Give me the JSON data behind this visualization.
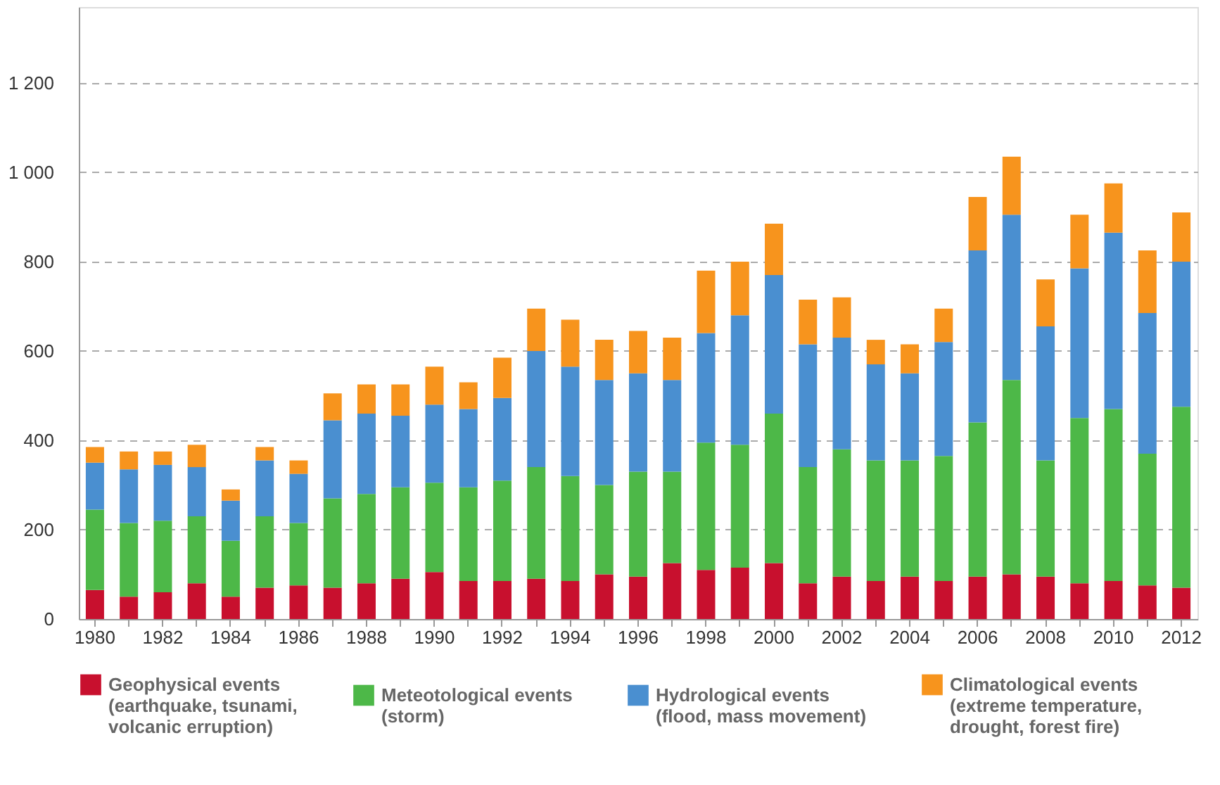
{
  "chart_data": {
    "type": "bar",
    "stacked": true,
    "categories": [
      "1980",
      null,
      "1982",
      null,
      "1984",
      null,
      "1986",
      null,
      "1988",
      null,
      "1990",
      null,
      "1992",
      null,
      "1994",
      null,
      "1996",
      null,
      "1998",
      null,
      "2000",
      null,
      "2002",
      null,
      "2004",
      null,
      "2006",
      null,
      "2008",
      null,
      "2010",
      null,
      "2012"
    ],
    "series": [
      {
        "name": "Geophysical events (earthquake, tsunami, volcanic erruption)",
        "color": "#c8102e",
        "values": [
          65,
          50,
          60,
          80,
          50,
          70,
          75,
          70,
          80,
          90,
          105,
          85,
          85,
          90,
          85,
          100,
          95,
          125,
          110,
          115,
          125,
          80,
          95,
          85,
          95,
          85,
          95,
          100,
          95,
          80,
          85,
          75,
          70
        ]
      },
      {
        "name": "Meteotological events (storm)",
        "color": "#4db848",
        "values": [
          180,
          165,
          160,
          150,
          125,
          160,
          140,
          200,
          200,
          205,
          200,
          210,
          225,
          250,
          235,
          200,
          235,
          205,
          285,
          275,
          335,
          260,
          285,
          270,
          260,
          280,
          345,
          435,
          260,
          370,
          385,
          295,
          405
        ]
      },
      {
        "name": "Hydrological events (flood, mass movement)",
        "color": "#4a8fd0",
        "values": [
          105,
          120,
          125,
          110,
          90,
          125,
          110,
          175,
          180,
          160,
          175,
          175,
          185,
          260,
          245,
          235,
          220,
          205,
          245,
          290,
          310,
          275,
          250,
          215,
          195,
          255,
          385,
          370,
          300,
          335,
          395,
          315,
          325
        ]
      },
      {
        "name": "Climatological events (extreme temperature, drought, forest fire)",
        "color": "#f7941d",
        "values": [
          35,
          40,
          30,
          50,
          25,
          30,
          30,
          60,
          65,
          70,
          85,
          60,
          90,
          95,
          105,
          90,
          95,
          95,
          140,
          120,
          115,
          100,
          90,
          55,
          65,
          75,
          120,
          130,
          105,
          120,
          110,
          140,
          110
        ]
      }
    ],
    "ylim": [
      0,
      1370
    ],
    "yticks": [
      0,
      200,
      400,
      600,
      800,
      {
        "value": 1000,
        "label": "1 000"
      },
      {
        "value": 1200,
        "label": "1 200"
      }
    ],
    "grid": "y",
    "legend": "bottom"
  }
}
